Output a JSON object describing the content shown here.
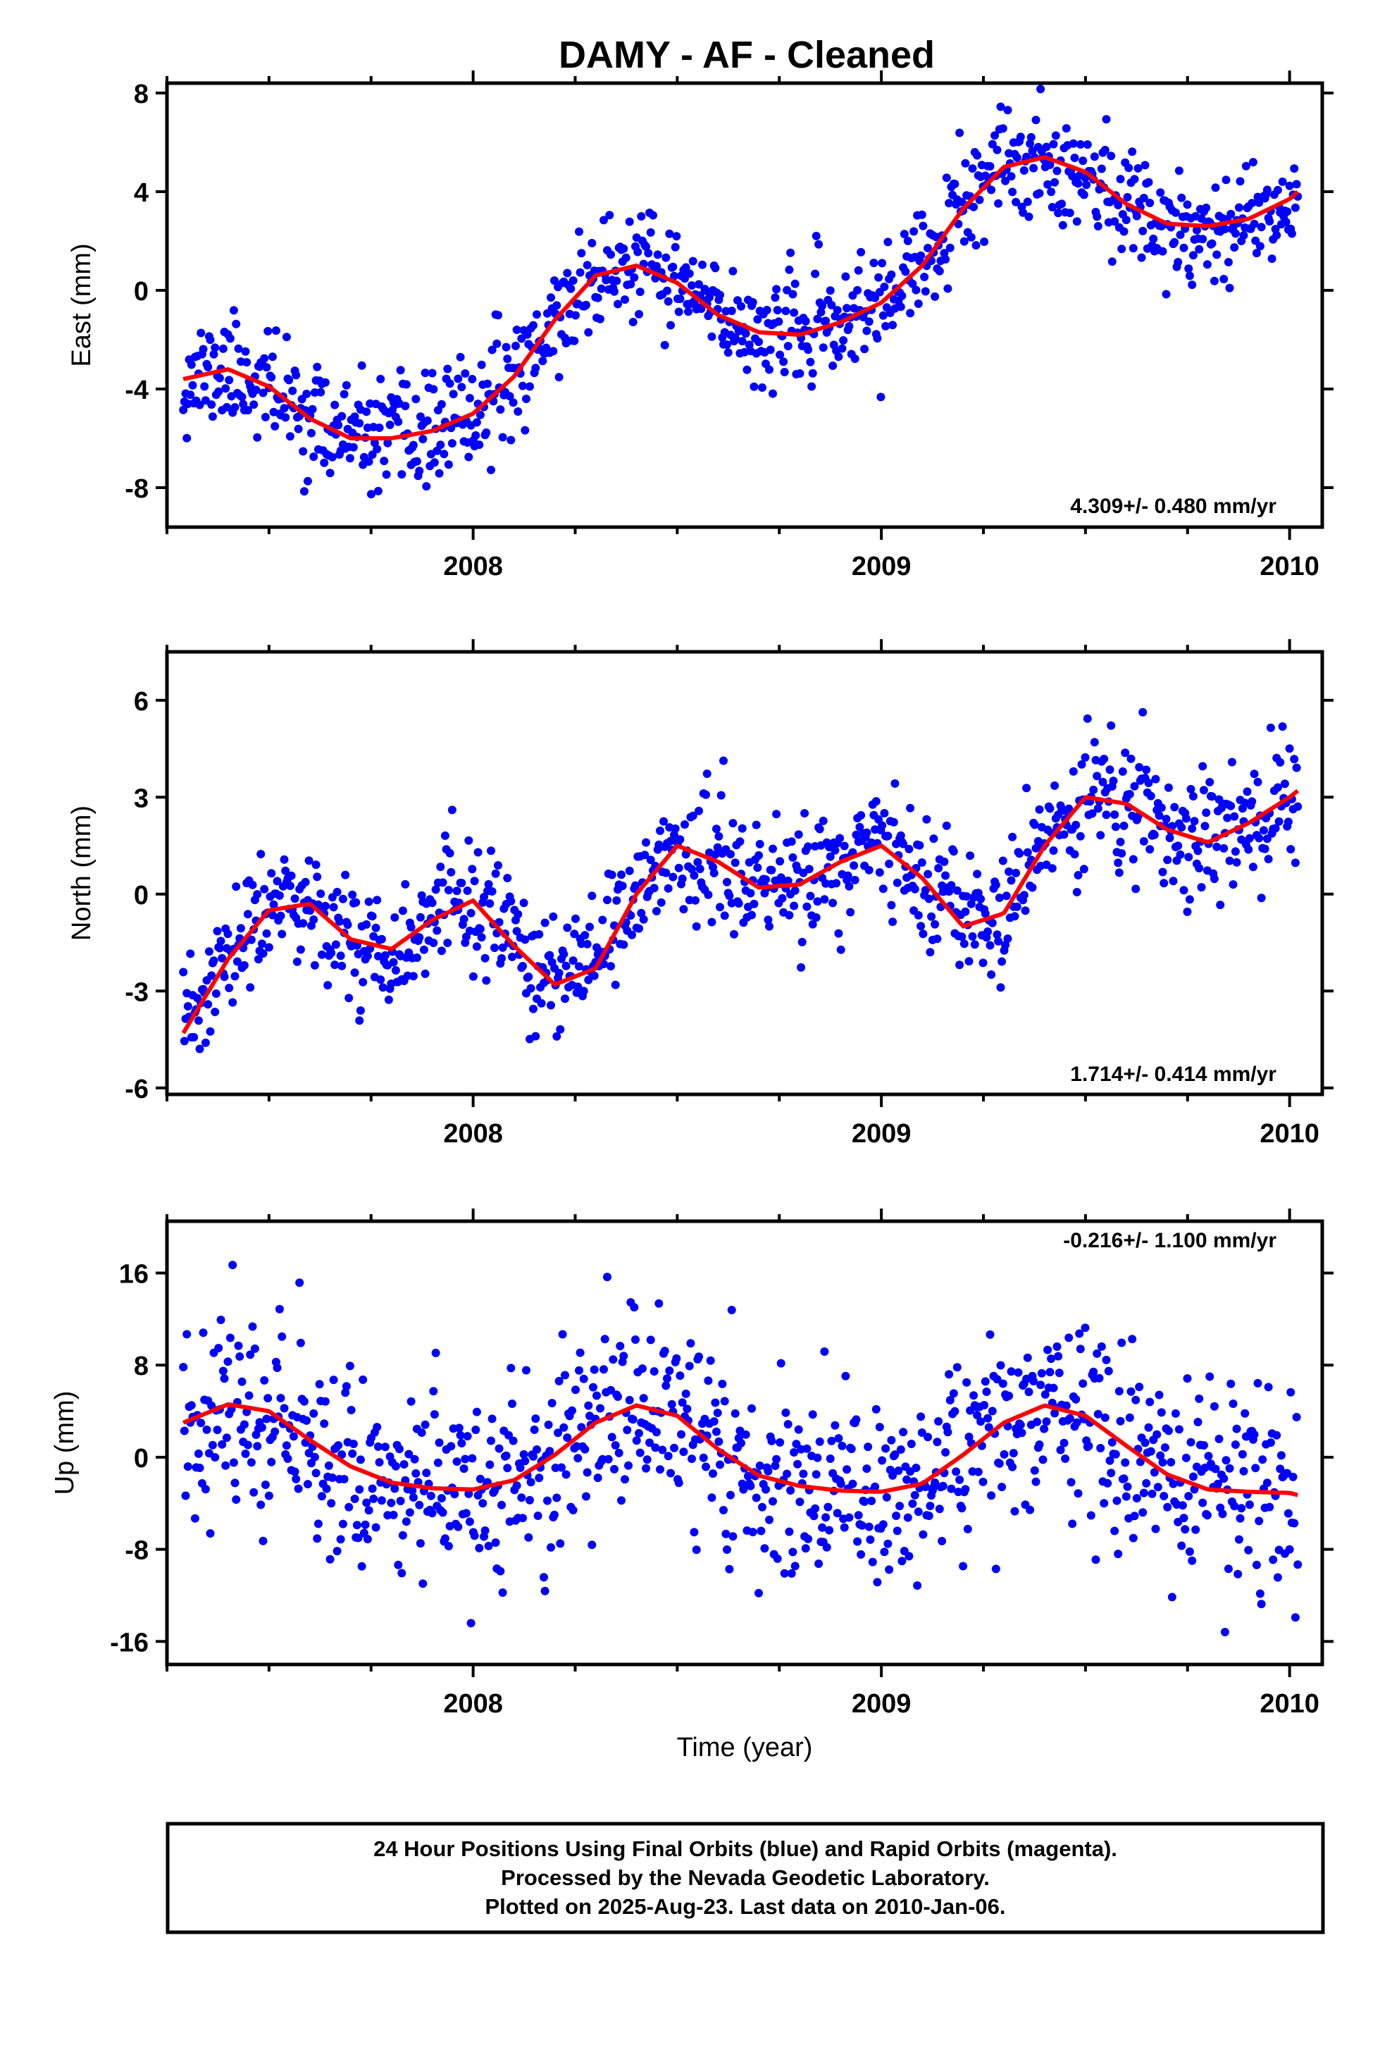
{
  "title": "DAMY  - AF - Cleaned",
  "colors": {
    "points": "#0000ff",
    "fit": "#ff0000",
    "frame": "#000000"
  },
  "chart_data": [
    {
      "type": "scatter",
      "ylabel": "East (mm)",
      "rate_label": "4.309+/- 0.480 mm/yr",
      "xlim": [
        2007.25,
        2010.08
      ],
      "ylim": [
        -9.6,
        8.4
      ],
      "yticks": [
        -8,
        -4,
        0,
        4,
        8
      ],
      "ytick_labels": [
        "-8",
        "-4",
        "0",
        "4",
        "8"
      ],
      "xticks": [
        2008,
        2009,
        2010
      ],
      "xtick_labels": [
        "2008",
        "2009",
        "2010"
      ],
      "xlabel": "",
      "trend_fit": {
        "name": "trend + seasonal fit",
        "x": [
          2007.29,
          2007.4,
          2007.5,
          2007.6,
          2007.7,
          2007.8,
          2007.9,
          2008.0,
          2008.1,
          2008.2,
          2008.3,
          2008.4,
          2008.5,
          2008.6,
          2008.7,
          2008.8,
          2008.9,
          2009.0,
          2009.1,
          2009.2,
          2009.3,
          2009.4,
          2009.5,
          2009.6,
          2009.7,
          2009.8,
          2009.9,
          2010.0,
          2010.02
        ],
        "y": [
          -3.6,
          -3.2,
          -3.9,
          -5.2,
          -6.0,
          -6.0,
          -5.7,
          -5.0,
          -3.5,
          -1.2,
          0.6,
          1.0,
          0.3,
          -1.0,
          -1.7,
          -1.8,
          -1.3,
          -0.5,
          1.0,
          3.3,
          5.0,
          5.4,
          4.8,
          3.5,
          2.7,
          2.6,
          2.9,
          3.7,
          4.0
        ]
      },
      "scatter_model": {
        "n": 950,
        "noise_sd": 1.1,
        "seed": 11,
        "x_end": 2010.02
      }
    },
    {
      "type": "scatter",
      "ylabel": "North (mm)",
      "rate_label": "1.714+/- 0.414 mm/yr",
      "xlim": [
        2007.25,
        2010.08
      ],
      "ylim": [
        -6.2,
        7.5
      ],
      "yticks": [
        -6,
        -3,
        0,
        3,
        6
      ],
      "ytick_labels": [
        "-6",
        "-3",
        "0",
        "3",
        "6"
      ],
      "xticks": [
        2008,
        2009,
        2010
      ],
      "xtick_labels": [
        "2008",
        "2009",
        "2010"
      ],
      "xlabel": "",
      "trend_fit": {
        "name": "trend + seasonal fit",
        "x": [
          2007.29,
          2007.4,
          2007.5,
          2007.6,
          2007.7,
          2007.8,
          2007.9,
          2008.0,
          2008.1,
          2008.2,
          2008.3,
          2008.4,
          2008.5,
          2008.6,
          2008.7,
          2008.8,
          2008.9,
          2009.0,
          2009.1,
          2009.2,
          2009.3,
          2009.4,
          2009.5,
          2009.6,
          2009.7,
          2009.8,
          2009.9,
          2010.0,
          2010.02
        ],
        "y": [
          -4.3,
          -2.0,
          -0.5,
          -0.3,
          -1.4,
          -1.7,
          -0.8,
          -0.2,
          -1.6,
          -2.8,
          -2.3,
          0.0,
          1.5,
          1.0,
          0.2,
          0.3,
          1.0,
          1.5,
          0.5,
          -1.0,
          -0.6,
          1.5,
          3.0,
          2.8,
          2.0,
          1.6,
          2.2,
          3.0,
          3.2
        ]
      },
      "scatter_model": {
        "n": 950,
        "noise_sd": 0.95,
        "seed": 23,
        "x_end": 2010.02
      }
    },
    {
      "type": "scatter",
      "ylabel": "Up (mm)",
      "xlabel": "Time (year)",
      "rate_label": "-0.216+/- 1.100 mm/yr",
      "xlim": [
        2007.25,
        2010.08
      ],
      "ylim": [
        -18,
        20.5
      ],
      "yticks": [
        -16,
        -8,
        0,
        8,
        16
      ],
      "ytick_labels": [
        "-16",
        "-8",
        "0",
        "8",
        "16"
      ],
      "xticks": [
        2008,
        2009,
        2010
      ],
      "xtick_labels": [
        "2008",
        "2009",
        "2010"
      ],
      "trend_fit": {
        "name": "trend + seasonal fit",
        "x": [
          2007.29,
          2007.4,
          2007.5,
          2007.6,
          2007.7,
          2007.8,
          2007.9,
          2008.0,
          2008.1,
          2008.2,
          2008.3,
          2008.4,
          2008.5,
          2008.6,
          2008.7,
          2008.8,
          2008.9,
          2009.0,
          2009.1,
          2009.2,
          2009.3,
          2009.4,
          2009.5,
          2009.6,
          2009.7,
          2009.8,
          2009.9,
          2010.0,
          2010.02
        ],
        "y": [
          3.0,
          4.6,
          4.0,
          1.5,
          -0.8,
          -2.2,
          -2.7,
          -2.8,
          -2.0,
          0.2,
          3.0,
          4.5,
          3.6,
          0.7,
          -1.6,
          -2.5,
          -2.9,
          -3.0,
          -2.3,
          0.2,
          3.0,
          4.5,
          3.6,
          1.0,
          -1.5,
          -2.8,
          -3.0,
          -3.1,
          -3.3
        ]
      },
      "scatter_model": {
        "n": 950,
        "noise_sd": 4.2,
        "seed": 37,
        "x_end": 2010.02
      }
    }
  ],
  "footer": {
    "line1": "24 Hour Positions Using Final Orbits (blue) and Rapid Orbits (magenta).",
    "line2": "Processed by the Nevada Geodetic Laboratory.",
    "line3": "Plotted on 2025-Aug-23. Last data on 2010-Jan-06."
  }
}
